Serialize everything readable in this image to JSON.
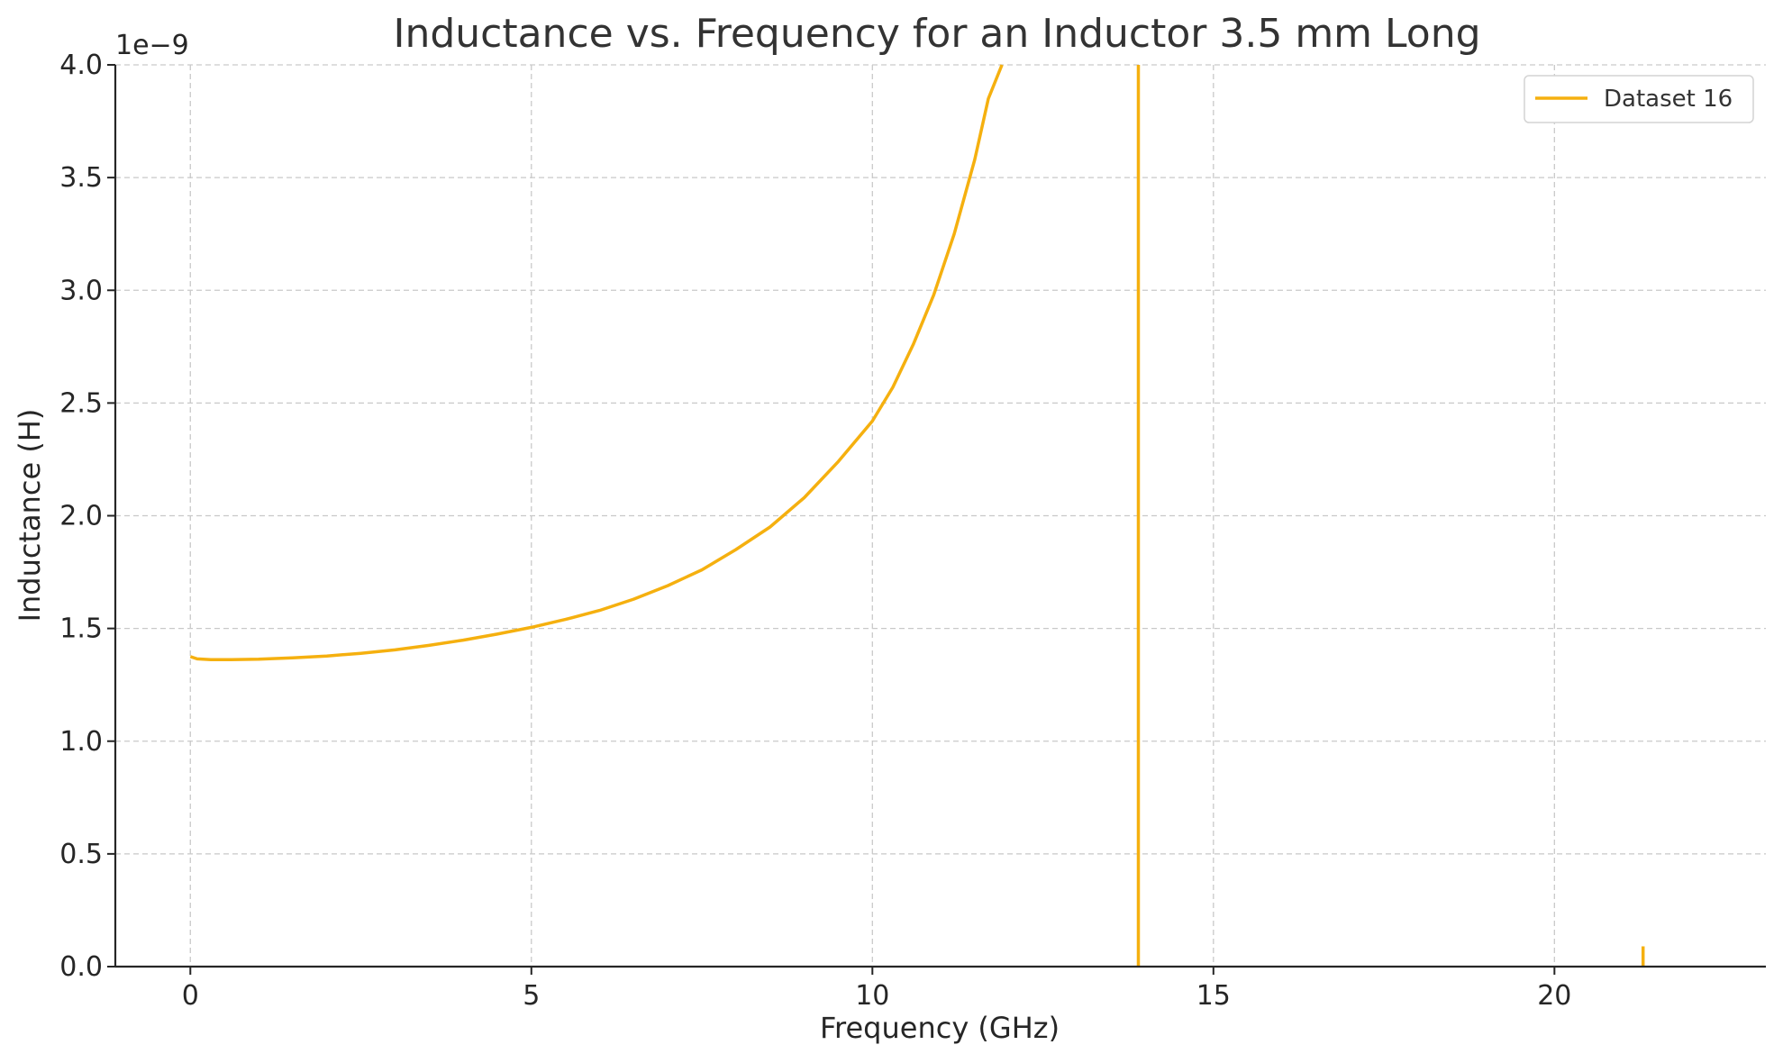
{
  "chart_data": {
    "type": "line",
    "title": "Inductance vs. Frequency for an Inductor 3.5 mm Long",
    "xlabel": "Frequency (GHz)",
    "ylabel": "Inductance (H)",
    "y_offset_label": "1e−9",
    "xlim": [
      -1.1,
      23.1
    ],
    "ylim": [
      0,
      4.0
    ],
    "x_ticks": [
      0,
      5,
      10,
      15,
      20
    ],
    "x_tick_labels": [
      "0",
      "5",
      "10",
      "15",
      "20"
    ],
    "y_ticks": [
      0,
      0.5,
      1.0,
      1.5,
      2.0,
      2.5,
      3.0,
      3.5,
      4.0
    ],
    "y_tick_labels": [
      "0.0",
      "0.5",
      "1.0",
      "1.5",
      "2.0",
      "2.5",
      "3.0",
      "3.5",
      "4.0"
    ],
    "y_scale_factor": 1e-09,
    "grid": true,
    "legend_position": "top-right",
    "series": [
      {
        "name": "Dataset 16",
        "color": "#f5b00f",
        "segments": [
          {
            "x": [
              0.0,
              0.1,
              0.3,
              0.6,
              1.0,
              1.5,
              2.0,
              2.5,
              3.0,
              3.5,
              4.0,
              4.5,
              5.0,
              5.5,
              6.0,
              6.5,
              7.0,
              7.5,
              8.0,
              8.5,
              9.0,
              9.5,
              10.0,
              10.3,
              10.6,
              10.9,
              11.2,
              11.5,
              11.7,
              11.9
            ],
            "y": [
              1.375,
              1.365,
              1.362,
              1.362,
              1.364,
              1.37,
              1.378,
              1.39,
              1.405,
              1.425,
              1.448,
              1.475,
              1.505,
              1.54,
              1.58,
              1.63,
              1.69,
              1.76,
              1.85,
              1.95,
              2.08,
              2.24,
              2.42,
              2.57,
              2.76,
              2.98,
              3.25,
              3.58,
              3.85,
              4.0
            ]
          },
          {
            "x": [
              13.9,
              13.9
            ],
            "y": [
              0.0,
              4.0
            ]
          },
          {
            "x": [
              21.3,
              21.3
            ],
            "y": [
              0.0,
              0.09
            ]
          }
        ]
      }
    ]
  }
}
